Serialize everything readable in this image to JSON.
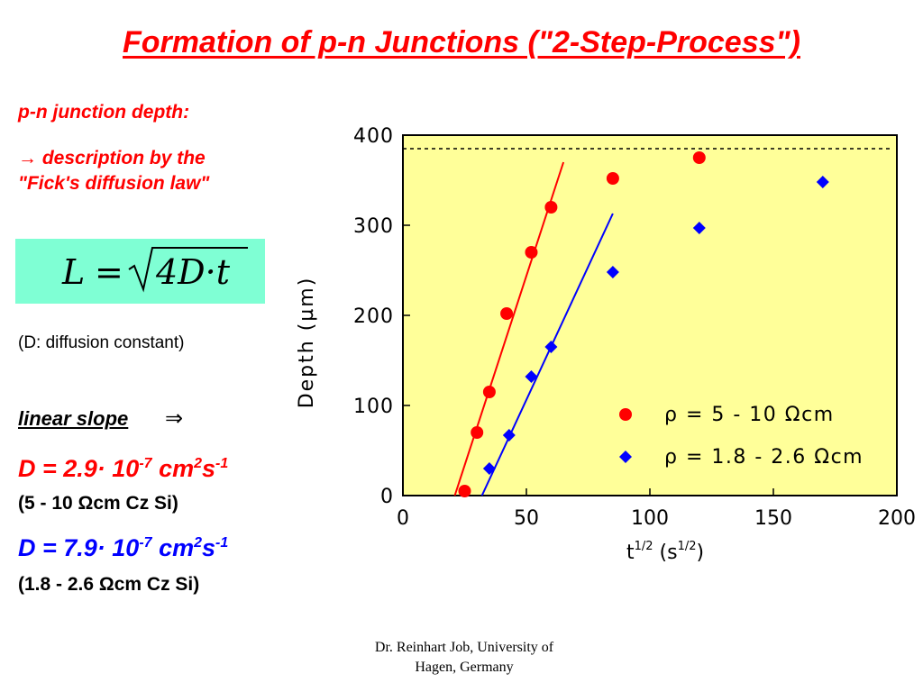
{
  "title": "Formation of p-n Junctions (\"2-Step-Process\")",
  "left_panel": {
    "heading": "p-n junction depth:",
    "arrow_symbol": "→",
    "description": "description by the",
    "law": "\"Fick's diffusion law\"",
    "formula": {
      "lhs": "L",
      "eq": "=",
      "body": "4D·t"
    },
    "note": "(D: diffusion constant)",
    "slope_label": "linear slope",
    "slope_symbol": "⇒",
    "d1": {
      "prefix": "D = 2.9· 10",
      "exp": "-7",
      "unit": " cm",
      "unit_exp": "2",
      "unit2": "s",
      "unit2_exp": "-1",
      "sub": "(5 - 10 Ωcm Cz Si)",
      "color": "#ff0000"
    },
    "d2": {
      "prefix": "D = 7.9· 10",
      "exp": "-7",
      "unit": " cm",
      "unit_exp": "2",
      "unit2": "s",
      "unit2_exp": "-1",
      "sub": "(1.8 - 2.6 Ωcm Cz Si)",
      "color": "#0000ff"
    }
  },
  "credit": {
    "line1": "Dr. Reinhart Job, University of",
    "line2": "Hagen, Germany"
  },
  "chart_data": {
    "type": "scatter",
    "background": "#ffff99",
    "xlabel": "t",
    "xlabel_sup": "1/2",
    "xlabel_unit": " (s",
    "xlabel_unit_sup": "1/2",
    "xlabel_close": ")",
    "ylabel": "Depth (µm)",
    "xlim": [
      0,
      200
    ],
    "ylim": [
      0,
      400
    ],
    "xticks": [
      0,
      50,
      100,
      150,
      200
    ],
    "yticks": [
      0,
      100,
      200,
      300,
      400
    ],
    "grid": false,
    "legend_position": "bottom-right",
    "reference_line": {
      "y": 385,
      "style": "dotted"
    },
    "series": [
      {
        "name": "ρ = 5 - 10 Ωcm",
        "marker": "circle",
        "color": "#ff0000",
        "points": [
          [
            25,
            5
          ],
          [
            30,
            70
          ],
          [
            35,
            115
          ],
          [
            42,
            202
          ],
          [
            52,
            270
          ],
          [
            60,
            320
          ],
          [
            85,
            352
          ],
          [
            120,
            375
          ]
        ],
        "fit": [
          [
            21,
            0
          ],
          [
            65,
            370
          ]
        ]
      },
      {
        "name": "ρ = 1.8 - 2.6 Ωcm",
        "marker": "diamond",
        "color": "#0000ff",
        "points": [
          [
            35,
            30
          ],
          [
            43,
            67
          ],
          [
            52,
            132
          ],
          [
            60,
            165
          ],
          [
            85,
            248
          ],
          [
            120,
            297
          ],
          [
            170,
            348
          ]
        ],
        "fit": [
          [
            32,
            0
          ],
          [
            85,
            313
          ]
        ]
      }
    ]
  }
}
